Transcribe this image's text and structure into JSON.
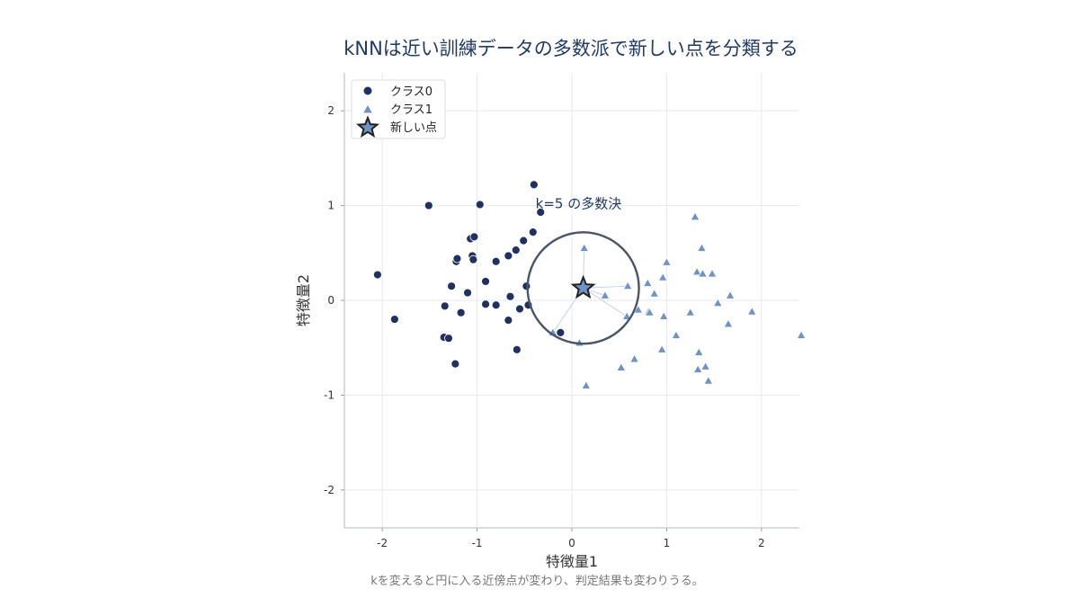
{
  "chart_data": {
    "type": "scatter",
    "title": "kNNは近い訓練データの多数派で新しい点を分類する",
    "caption": "kを変えると円に入る近傍点が変わり、判定結果も変わりうる。",
    "xlabel": "特徴量1",
    "ylabel": "特徴量2",
    "xlim": [
      -2.4,
      2.4
    ],
    "ylim": [
      -2.4,
      2.4
    ],
    "xticks": [
      -2,
      -1,
      0,
      1,
      2
    ],
    "yticks": [
      -2,
      -1,
      0,
      1,
      2
    ],
    "xtick_labels": [
      "-2",
      "-1",
      "0",
      "1",
      "2"
    ],
    "ytick_labels": [
      "-2",
      "-1",
      "0",
      "1",
      "2"
    ],
    "grid": true,
    "legend_position": "top-left",
    "annotation": "k=5 の多数決",
    "colors": {
      "class0": "#1f3160",
      "class1": "#6d93c7",
      "star": "#6d93c7",
      "circle": "#4a5568",
      "line": "#c8d2e6"
    },
    "series": [
      {
        "name": "クラス0",
        "marker": "circle",
        "points": [
          [
            -2.05,
            0.27
          ],
          [
            -1.87,
            -0.2
          ],
          [
            -1.51,
            1.0
          ],
          [
            -1.35,
            -0.39
          ],
          [
            -1.34,
            -0.06
          ],
          [
            -1.3,
            -0.4
          ],
          [
            -1.27,
            0.15
          ],
          [
            -1.23,
            -0.67
          ],
          [
            -1.22,
            0.41
          ],
          [
            -1.21,
            0.44
          ],
          [
            -1.17,
            -0.13
          ],
          [
            -1.1,
            0.08
          ],
          [
            -1.07,
            0.65
          ],
          [
            -1.05,
            0.47
          ],
          [
            -1.04,
            0.43
          ],
          [
            -1.03,
            0.67
          ],
          [
            -0.97,
            1.01
          ],
          [
            -0.91,
            0.2
          ],
          [
            -0.91,
            -0.04
          ],
          [
            -0.8,
            -0.05
          ],
          [
            -0.8,
            0.41
          ],
          [
            -0.67,
            0.47
          ],
          [
            -0.67,
            -0.21
          ],
          [
            -0.65,
            0.04
          ],
          [
            -0.59,
            0.53
          ],
          [
            -0.58,
            -0.52
          ],
          [
            -0.55,
            -0.09
          ],
          [
            -0.51,
            0.63
          ],
          [
            -0.48,
            0.15
          ],
          [
            -0.46,
            -0.05
          ],
          [
            -0.41,
            0.72
          ],
          [
            -0.4,
            1.22
          ],
          [
            -0.33,
            0.93
          ],
          [
            -0.12,
            -0.34
          ]
        ]
      },
      {
        "name": "クラス1",
        "marker": "triangle",
        "points": [
          [
            -0.2,
            -0.34
          ],
          [
            0.08,
            -0.45
          ],
          [
            0.13,
            0.55
          ],
          [
            0.15,
            -0.9
          ],
          [
            0.35,
            0.05
          ],
          [
            0.52,
            -0.71
          ],
          [
            0.58,
            -0.17
          ],
          [
            0.59,
            0.15
          ],
          [
            0.66,
            -0.62
          ],
          [
            0.7,
            -0.1
          ],
          [
            0.8,
            0.18
          ],
          [
            0.81,
            -0.12
          ],
          [
            0.82,
            -0.13
          ],
          [
            0.87,
            0.07
          ],
          [
            0.95,
            -0.52
          ],
          [
            0.96,
            0.24
          ],
          [
            0.97,
            -0.17
          ],
          [
            1.0,
            0.4
          ],
          [
            1.1,
            -0.37
          ],
          [
            1.25,
            -0.13
          ],
          [
            1.3,
            0.88
          ],
          [
            1.32,
            0.3
          ],
          [
            1.33,
            -0.73
          ],
          [
            1.34,
            -0.55
          ],
          [
            1.37,
            0.55
          ],
          [
            1.38,
            0.28
          ],
          [
            1.41,
            -0.7
          ],
          [
            1.44,
            -0.85
          ],
          [
            1.48,
            0.28
          ],
          [
            1.54,
            -0.03
          ],
          [
            1.65,
            -0.25
          ],
          [
            1.67,
            0.05
          ],
          [
            1.9,
            -0.12
          ],
          [
            2.42,
            -0.37
          ]
        ]
      },
      {
        "name": "新しい点",
        "marker": "star",
        "points": [
          [
            0.12,
            0.13
          ]
        ]
      }
    ],
    "neighbors": [
      [
        0.13,
        0.55
      ],
      [
        0.59,
        0.15
      ],
      [
        0.58,
        -0.17
      ],
      [
        0.35,
        0.05
      ],
      [
        -0.2,
        -0.34
      ]
    ]
  }
}
